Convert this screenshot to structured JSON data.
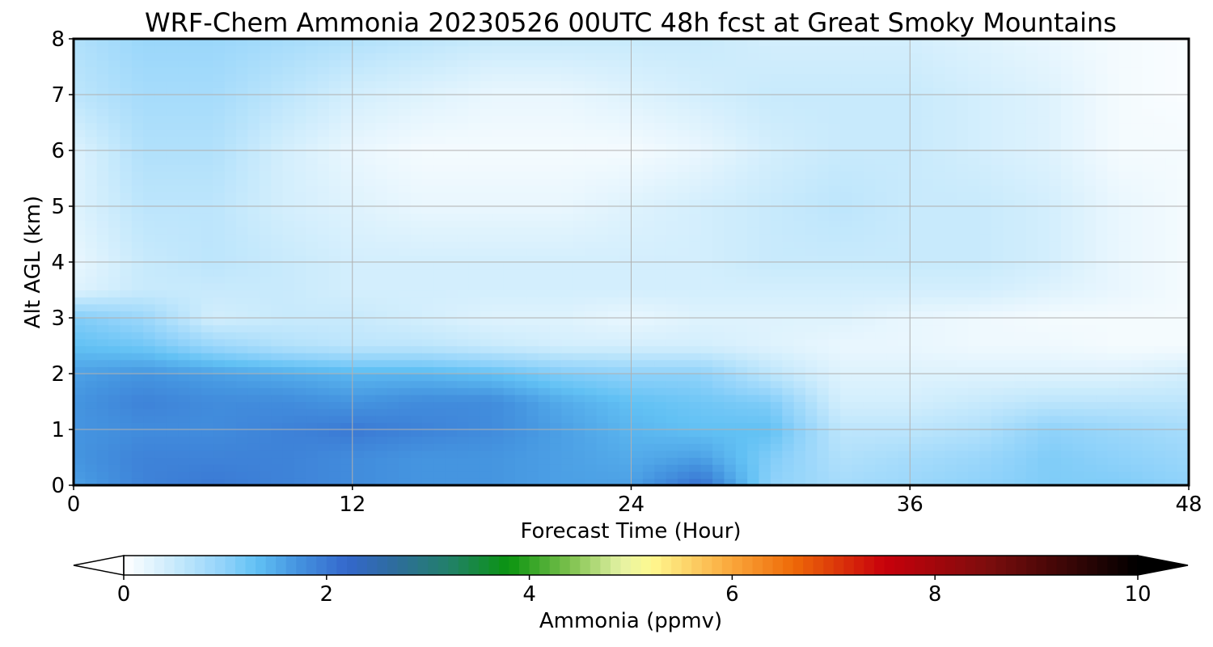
{
  "chart_data": {
    "type": "heatmap",
    "title": "WRF-Chem Ammonia  20230526 00UTC 48h fcst at Great Smoky Mountains",
    "xlabel": "Forecast Time (Hour)",
    "ylabel": "Alt AGL (km)",
    "xlim": [
      0,
      48
    ],
    "ylim": [
      0,
      8
    ],
    "x_ticks": [
      0,
      12,
      24,
      36,
      48
    ],
    "y_ticks": [
      0,
      1,
      2,
      3,
      4,
      5,
      6,
      7,
      8
    ],
    "grid": true,
    "x": [
      0,
      3,
      6,
      9,
      12,
      15,
      18,
      21,
      24,
      27,
      30,
      33,
      36,
      39,
      42,
      45,
      48
    ],
    "y": [
      0,
      0.5,
      1,
      1.5,
      2,
      2.5,
      3,
      3.5,
      4,
      5,
      6,
      7,
      8
    ],
    "z": [
      [
        1.6,
        1.9,
        2.0,
        1.9,
        1.8,
        1.7,
        1.7,
        1.6,
        1.6,
        2.1,
        1.0,
        0.8,
        0.9,
        1.0,
        1.1,
        1.1,
        1.0
      ],
      [
        1.7,
        1.9,
        1.9,
        1.9,
        1.8,
        1.7,
        1.7,
        1.6,
        1.5,
        1.6,
        1.1,
        0.7,
        0.8,
        0.9,
        1.1,
        1.0,
        0.9
      ],
      [
        1.7,
        1.8,
        1.8,
        1.9,
        2.0,
        1.9,
        1.8,
        1.6,
        1.4,
        1.3,
        1.3,
        0.6,
        0.6,
        0.7,
        1.0,
        0.9,
        0.8
      ],
      [
        1.7,
        1.9,
        1.8,
        1.8,
        1.7,
        1.8,
        1.8,
        1.5,
        1.3,
        1.2,
        1.1,
        0.4,
        0.4,
        0.5,
        0.6,
        0.6,
        0.6
      ],
      [
        1.6,
        1.7,
        1.6,
        1.5,
        1.4,
        1.4,
        1.3,
        1.1,
        1.0,
        1.0,
        0.6,
        0.3,
        0.3,
        0.3,
        0.3,
        0.3,
        0.4
      ],
      [
        1.3,
        1.2,
        0.9,
        0.7,
        0.6,
        0.6,
        0.5,
        0.4,
        0.4,
        0.4,
        0.3,
        0.2,
        0.2,
        0.15,
        0.15,
        0.1,
        0.1
      ],
      [
        1.1,
        0.9,
        0.4,
        0.5,
        0.5,
        0.4,
        0.3,
        0.3,
        0.2,
        0.3,
        0.3,
        0.3,
        0.2,
        0.15,
        0.1,
        0.1,
        0.1
      ],
      [
        0.3,
        0.5,
        0.5,
        0.5,
        0.4,
        0.4,
        0.4,
        0.4,
        0.4,
        0.4,
        0.4,
        0.4,
        0.4,
        0.4,
        0.3,
        0.2,
        0.1
      ],
      [
        0.2,
        0.5,
        0.6,
        0.5,
        0.4,
        0.4,
        0.4,
        0.4,
        0.4,
        0.4,
        0.5,
        0.5,
        0.5,
        0.5,
        0.4,
        0.2,
        0.1
      ],
      [
        0.3,
        0.6,
        0.6,
        0.4,
        0.3,
        0.2,
        0.2,
        0.2,
        0.3,
        0.4,
        0.5,
        0.6,
        0.5,
        0.5,
        0.4,
        0.2,
        0.1
      ],
      [
        0.3,
        0.7,
        0.7,
        0.4,
        0.2,
        0.1,
        0.1,
        0.1,
        0.1,
        0.2,
        0.4,
        0.5,
        0.5,
        0.4,
        0.3,
        0.1,
        0.1
      ],
      [
        0.6,
        0.8,
        0.8,
        0.6,
        0.4,
        0.3,
        0.2,
        0.2,
        0.3,
        0.4,
        0.5,
        0.5,
        0.5,
        0.4,
        0.3,
        0.1,
        0.05
      ],
      [
        0.7,
        0.9,
        0.9,
        0.8,
        0.7,
        0.6,
        0.5,
        0.5,
        0.5,
        0.5,
        0.4,
        0.4,
        0.4,
        0.3,
        0.2,
        0.1,
        0.05
      ]
    ],
    "colorbar": {
      "label": "Ammonia  (ppmv)",
      "range": [
        0,
        10
      ],
      "ticks": [
        0,
        2,
        4,
        6,
        8,
        10
      ],
      "extend": "both",
      "stops": [
        {
          "value": 0,
          "color": "#ffffff"
        },
        {
          "value": 0.5,
          "color": "#c8eafc"
        },
        {
          "value": 1.0,
          "color": "#8fd2fa"
        },
        {
          "value": 1.3,
          "color": "#62c1f4"
        },
        {
          "value": 1.7,
          "color": "#4595e0"
        },
        {
          "value": 2.2,
          "color": "#3467cc"
        },
        {
          "value": 2.7,
          "color": "#2d6d9a"
        },
        {
          "value": 3.2,
          "color": "#22806a"
        },
        {
          "value": 3.8,
          "color": "#0a9410"
        },
        {
          "value": 4.4,
          "color": "#7dc14d"
        },
        {
          "value": 4.9,
          "color": "#e4f2a4"
        },
        {
          "value": 5.2,
          "color": "#fff990"
        },
        {
          "value": 6.0,
          "color": "#faa63a"
        },
        {
          "value": 6.6,
          "color": "#ee6a08"
        },
        {
          "value": 7.5,
          "color": "#c8000b"
        },
        {
          "value": 8.5,
          "color": "#7e0d0d"
        },
        {
          "value": 10,
          "color": "#000000"
        }
      ]
    }
  }
}
